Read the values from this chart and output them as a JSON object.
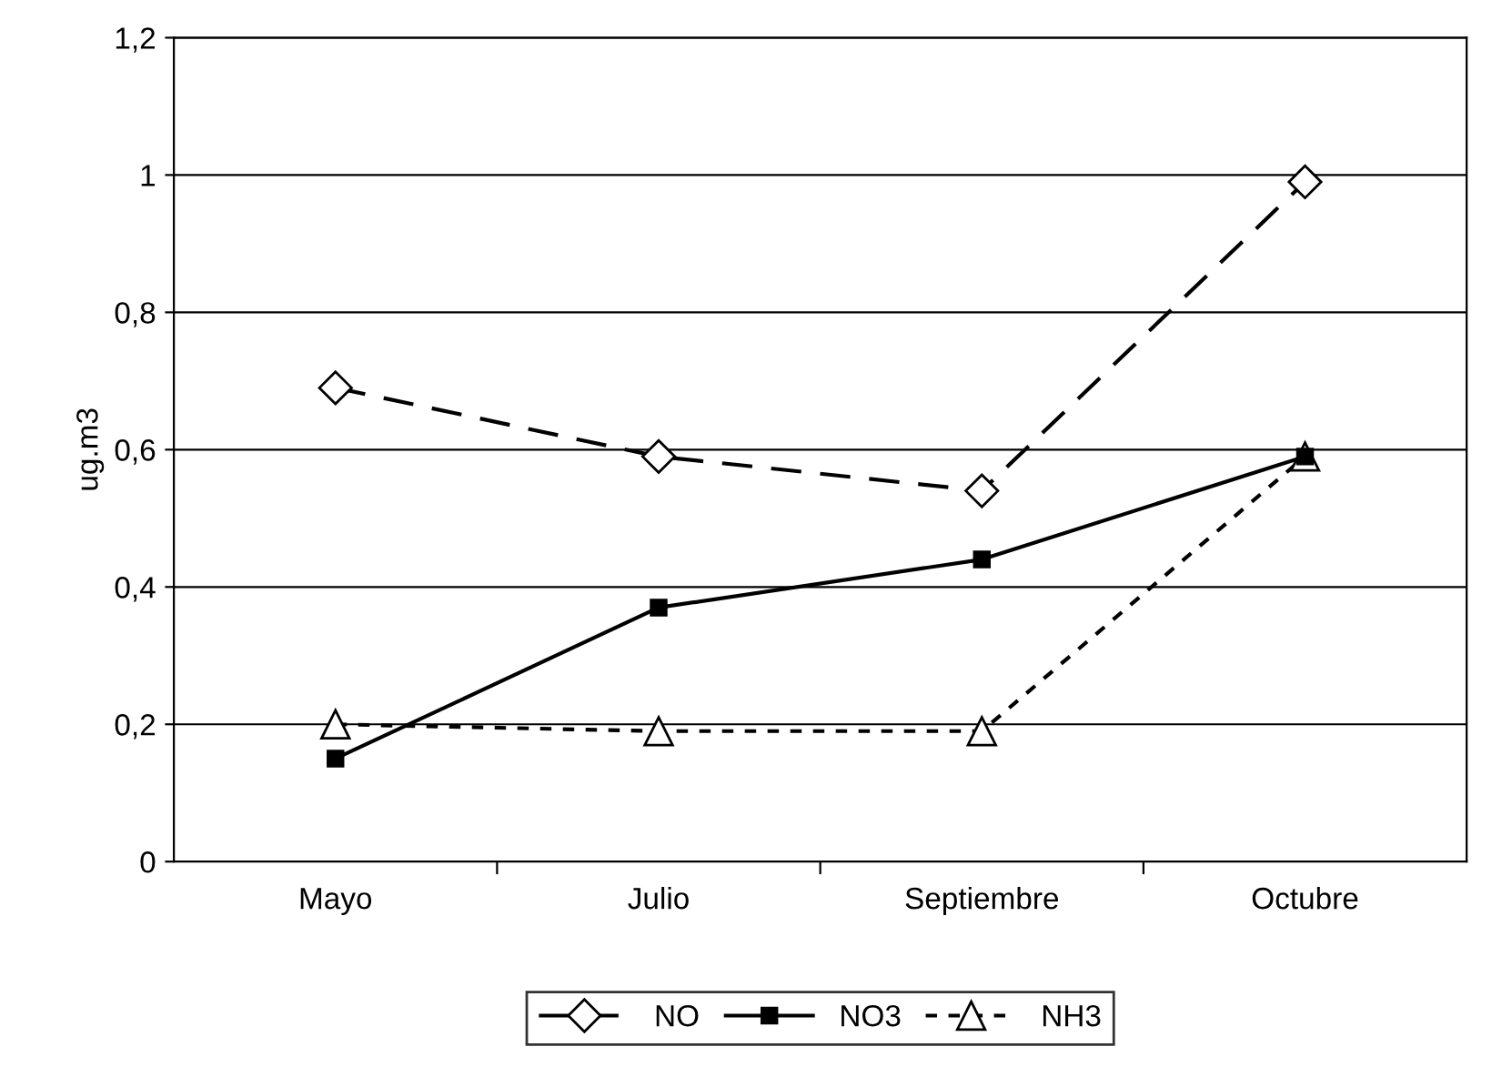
{
  "chart_data": {
    "type": "line",
    "ylabel": "ug.m3",
    "categories": [
      "Mayo",
      "Julio",
      "Septiembre",
      "Octubre"
    ],
    "series": [
      {
        "name": "NO",
        "color": "#000000",
        "marker": "diamond",
        "line_style": "dashed",
        "values": [
          0.69,
          0.59,
          0.54,
          0.99
        ]
      },
      {
        "name": "NO3",
        "color": "#000000",
        "marker": "square",
        "line_style": "solid",
        "values": [
          0.15,
          0.37,
          0.44,
          0.59
        ]
      },
      {
        "name": "NH3",
        "color": "#000000",
        "marker": "triangle",
        "line_style": "dotted",
        "values": [
          0.2,
          0.19,
          0.19,
          0.59
        ]
      }
    ],
    "ylim": [
      0,
      1.2
    ],
    "yticks": [
      0,
      {
        "value": 0.2,
        "label": "0,2"
      },
      {
        "value": 0.4,
        "label": "0,4"
      },
      {
        "value": 0.6,
        "label": "0,6"
      },
      {
        "value": 0.8,
        "label": "0,8"
      },
      1,
      {
        "value": 1.2,
        "label": "1,2"
      }
    ],
    "grid": "y",
    "legend": "bottom"
  }
}
